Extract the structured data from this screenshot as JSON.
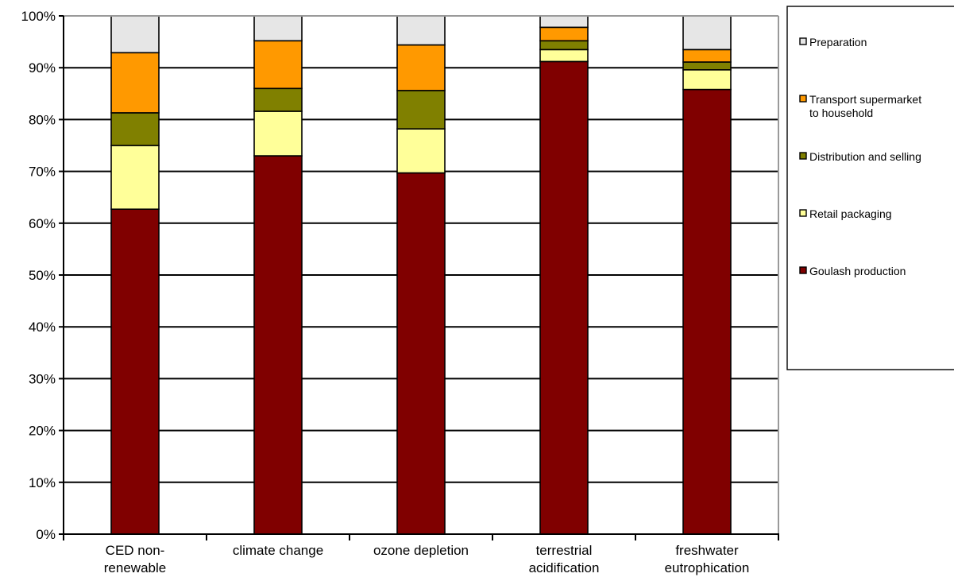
{
  "chart_data": {
    "type": "bar",
    "stacked": true,
    "categories": [
      [
        "CED non-",
        "renewable"
      ],
      [
        "climate change"
      ],
      [
        "ozone depletion"
      ],
      [
        "terrestrial",
        "acidification"
      ],
      [
        "freshwater",
        "eutrophication"
      ]
    ],
    "series": [
      {
        "name": "Goulash production",
        "color": "#800000",
        "values": [
          62.7,
          73.0,
          69.7,
          91.2,
          85.8
        ]
      },
      {
        "name": "Retail packaging",
        "color": "#ffff99",
        "values": [
          12.3,
          8.6,
          8.5,
          2.3,
          3.8
        ]
      },
      {
        "name": "Distribution and selling",
        "color": "#808000",
        "values": [
          6.3,
          4.4,
          7.4,
          1.7,
          1.5
        ]
      },
      {
        "name": "Transport supermarket to household",
        "legend_lines": [
          "Transport supermarket",
          "to household"
        ],
        "color": "#ff9900",
        "values": [
          11.6,
          9.2,
          8.8,
          2.6,
          2.4
        ]
      },
      {
        "name": "Preparation",
        "color": "#e6e6e6",
        "values": [
          7.1,
          4.8,
          5.6,
          2.2,
          6.5
        ]
      }
    ],
    "legend_order": [
      "Preparation",
      "Transport supermarket to household",
      "Distribution and selling",
      "Retail packaging",
      "Goulash production"
    ],
    "title": "",
    "xlabel": "",
    "ylabel": "",
    "ylim": [
      0,
      100
    ],
    "yticks": [
      0,
      10,
      20,
      30,
      40,
      50,
      60,
      70,
      80,
      90,
      100
    ],
    "ytick_format": "percent",
    "grid": true,
    "legend_position": "right"
  }
}
